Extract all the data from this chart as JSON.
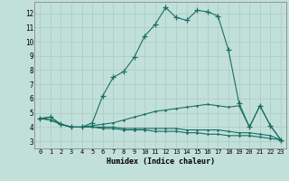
{
  "title": "",
  "xlabel": "Humidex (Indice chaleur)",
  "ylabel": "",
  "background_color": "#c2e0da",
  "grid_color": "#b0ccc6",
  "line_color": "#1a6e64",
  "xlim": [
    -0.5,
    23.5
  ],
  "ylim": [
    2.5,
    12.8
  ],
  "xticks": [
    0,
    1,
    2,
    3,
    4,
    5,
    6,
    7,
    8,
    9,
    10,
    11,
    12,
    13,
    14,
    15,
    16,
    17,
    18,
    19,
    20,
    21,
    22,
    23
  ],
  "yticks": [
    3,
    4,
    5,
    6,
    7,
    8,
    9,
    10,
    11,
    12
  ],
  "series": [
    [
      4.6,
      4.7,
      4.2,
      4.0,
      4.0,
      4.3,
      6.2,
      7.5,
      7.9,
      8.9,
      10.4,
      11.2,
      12.4,
      11.7,
      11.5,
      12.2,
      12.1,
      11.8,
      9.4,
      5.7,
      4.0,
      5.5,
      4.1,
      3.1
    ],
    [
      4.6,
      4.7,
      4.2,
      4.0,
      4.0,
      4.1,
      4.2,
      4.3,
      4.5,
      4.7,
      4.9,
      5.1,
      5.2,
      5.3,
      5.4,
      5.5,
      5.6,
      5.5,
      5.4,
      5.5,
      4.0,
      5.5,
      4.1,
      3.1
    ],
    [
      4.6,
      4.5,
      4.2,
      4.0,
      4.0,
      4.0,
      4.0,
      4.0,
      3.9,
      3.9,
      3.9,
      3.9,
      3.9,
      3.9,
      3.8,
      3.8,
      3.8,
      3.8,
      3.7,
      3.6,
      3.6,
      3.5,
      3.4,
      3.1
    ],
    [
      4.6,
      4.5,
      4.2,
      4.0,
      4.0,
      4.0,
      3.9,
      3.9,
      3.8,
      3.8,
      3.8,
      3.7,
      3.7,
      3.7,
      3.6,
      3.6,
      3.5,
      3.5,
      3.4,
      3.4,
      3.4,
      3.3,
      3.2,
      3.1
    ]
  ]
}
